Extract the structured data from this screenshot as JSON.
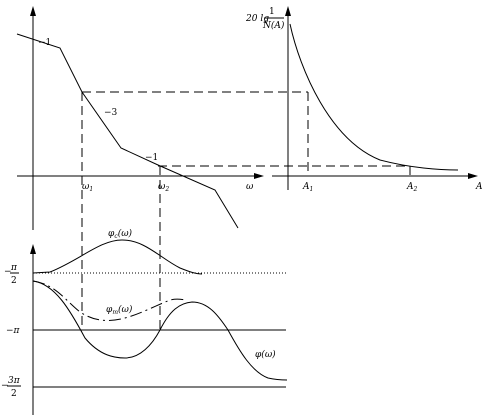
{
  "bode_magnitude": {
    "slope_labels": [
      "−1",
      "−3",
      "−1"
    ]
  },
  "describing_function_plot": {
    "ylabel": {
      "prefix": "20 lg",
      "num": "1",
      "den": "N(A)"
    },
    "xlabel": "A",
    "ticks": [
      "A₁",
      "A₂"
    ]
  },
  "freq_axis": {
    "xlabel": "ω",
    "ticks": [
      "ω₁",
      "ω₂"
    ]
  },
  "phase_plot": {
    "ytick_half_pi": {
      "sign": "−",
      "num": "π",
      "den": "2"
    },
    "ytick_pi": "−π",
    "ytick_three_half_pi": {
      "sign": "−",
      "num": "3π",
      "den": "2"
    },
    "curve_labels": {
      "phi_c": {
        "base": "φ",
        "sub": "c",
        "arg": "(ω)"
      },
      "phi_m": {
        "base": "φ",
        "sub": "m",
        "arg": "(ω)"
      },
      "phi": "φ(ω)"
    }
  }
}
